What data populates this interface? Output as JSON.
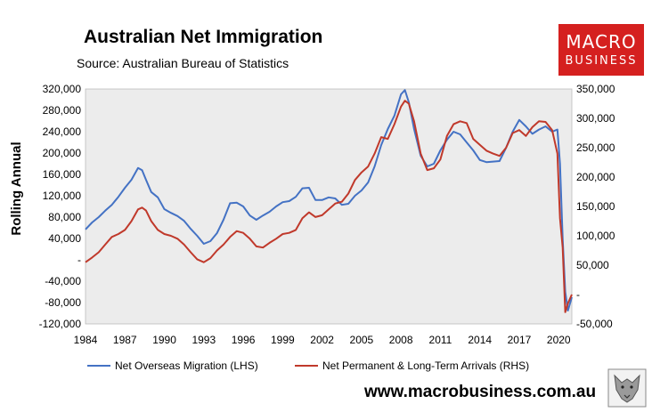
{
  "header": {
    "title": "Australian Net Immigration",
    "source": "Source: Australian Bureau of Statistics",
    "logo_line1": "MACRO",
    "logo_line2": "BUSINESS",
    "website": "www.macrobusiness.com.au"
  },
  "colors": {
    "series1": "#4472c4",
    "series2": "#c0392b",
    "plot_bg": "#ececec",
    "brand": "#d5201f"
  },
  "chart_data": {
    "type": "line",
    "title": "Australian Net Immigration",
    "ylabel": "Rolling Annual",
    "xlim": [
      1984,
      2021
    ],
    "ylim": [
      -120000,
      320000
    ],
    "y2lim": [
      -50000,
      350000
    ],
    "x_ticks": [
      "1984",
      "1987",
      "1990",
      "1993",
      "1996",
      "1999",
      "2002",
      "2005",
      "2008",
      "2011",
      "2014",
      "2017",
      "2020"
    ],
    "y_ticks": [
      "320,000",
      "280,000",
      "240,000",
      "200,000",
      "160,000",
      "120,000",
      "80,000",
      "40,000",
      "-",
      "-40,000",
      "-80,000",
      "-120,000"
    ],
    "y2_ticks": [
      "350,000",
      "300,000",
      "250,000",
      "200,000",
      "150,000",
      "100,000",
      "50,000",
      "-",
      "-50,000"
    ],
    "grid": false,
    "legend_placement": "bottom",
    "series": [
      {
        "name": "Net Overseas Migration (LHS)",
        "axis": "left",
        "x": [
          1984,
          1984.5,
          1985,
          1985.5,
          1986,
          1986.5,
          1987,
          1987.5,
          1988,
          1988.3,
          1988.6,
          1989,
          1989.5,
          1990,
          1990.5,
          1991,
          1991.5,
          1992,
          1992.5,
          1993,
          1993.5,
          1994,
          1994.5,
          1995,
          1995.5,
          1996,
          1996.5,
          1997,
          1997.5,
          1998,
          1998.5,
          1999,
          1999.5,
          2000,
          2000.5,
          2001,
          2001.5,
          2002,
          2002.5,
          2003,
          2003.5,
          2004,
          2004.5,
          2005,
          2005.5,
          2006,
          2006.5,
          2007,
          2007.5,
          2008,
          2008.3,
          2008.6,
          2009,
          2009.5,
          2010,
          2010.5,
          2011,
          2011.5,
          2012,
          2012.5,
          2013,
          2013.5,
          2014,
          2014.5,
          2015,
          2015.5,
          2016,
          2016.5,
          2017,
          2017.5,
          2018,
          2018.5,
          2019,
          2019.5,
          2019.9,
          2020.1,
          2020.3,
          2020.5,
          2020.7,
          2021
        ],
        "y": [
          57000,
          70000,
          80000,
          92000,
          103000,
          118000,
          135000,
          150000,
          172000,
          168000,
          150000,
          127000,
          117000,
          95000,
          88000,
          82000,
          73000,
          58000,
          45000,
          30000,
          35000,
          50000,
          75000,
          106000,
          107000,
          100000,
          83000,
          75000,
          83000,
          90000,
          100000,
          108000,
          110000,
          118000,
          134000,
          135000,
          112000,
          112000,
          117000,
          115000,
          103000,
          105000,
          120000,
          130000,
          145000,
          175000,
          215000,
          245000,
          270000,
          310000,
          318000,
          295000,
          245000,
          195000,
          175000,
          180000,
          205000,
          225000,
          240000,
          235000,
          220000,
          205000,
          187000,
          183000,
          184000,
          185000,
          210000,
          240000,
          262000,
          250000,
          236000,
          244000,
          250000,
          240000,
          244000,
          180000,
          40000,
          -60000,
          -95000,
          -70000
        ]
      },
      {
        "name": "Net Permanent & Long-Term Arrivals (RHS)",
        "axis": "right",
        "x": [
          1984,
          1984.5,
          1985,
          1985.5,
          1986,
          1986.5,
          1987,
          1987.5,
          1988,
          1988.3,
          1988.6,
          1989,
          1989.5,
          1990,
          1990.5,
          1991,
          1991.5,
          1992,
          1992.5,
          1993,
          1993.5,
          1994,
          1994.5,
          1995,
          1995.5,
          1996,
          1996.5,
          1997,
          1997.5,
          1998,
          1998.5,
          1999,
          1999.5,
          2000,
          2000.5,
          2001,
          2001.5,
          2002,
          2002.5,
          2003,
          2003.5,
          2004,
          2004.5,
          2005,
          2005.5,
          2006,
          2006.5,
          2007,
          2007.5,
          2008,
          2008.3,
          2008.6,
          2009,
          2009.5,
          2010,
          2010.5,
          2011,
          2011.5,
          2012,
          2012.5,
          2013,
          2013.5,
          2014,
          2014.5,
          2015,
          2015.5,
          2016,
          2016.5,
          2017,
          2017.5,
          2018,
          2018.5,
          2019,
          2019.5,
          2019.9,
          2020.1,
          2020.3,
          2020.5,
          2020.7,
          2021
        ],
        "y": [
          55000,
          63000,
          72000,
          85000,
          98000,
          103000,
          110000,
          125000,
          145000,
          148000,
          143000,
          125000,
          110000,
          103000,
          100000,
          95000,
          85000,
          72000,
          60000,
          55000,
          62000,
          75000,
          85000,
          98000,
          108000,
          105000,
          95000,
          82000,
          80000,
          88000,
          95000,
          103000,
          105000,
          110000,
          130000,
          140000,
          132000,
          135000,
          145000,
          155000,
          158000,
          172000,
          195000,
          208000,
          218000,
          240000,
          268000,
          265000,
          290000,
          320000,
          330000,
          325000,
          295000,
          240000,
          212000,
          215000,
          230000,
          270000,
          290000,
          295000,
          292000,
          265000,
          255000,
          245000,
          240000,
          236000,
          250000,
          275000,
          280000,
          270000,
          285000,
          295000,
          294000,
          280000,
          240000,
          130000,
          80000,
          -30000,
          -15000,
          0
        ]
      }
    ]
  }
}
